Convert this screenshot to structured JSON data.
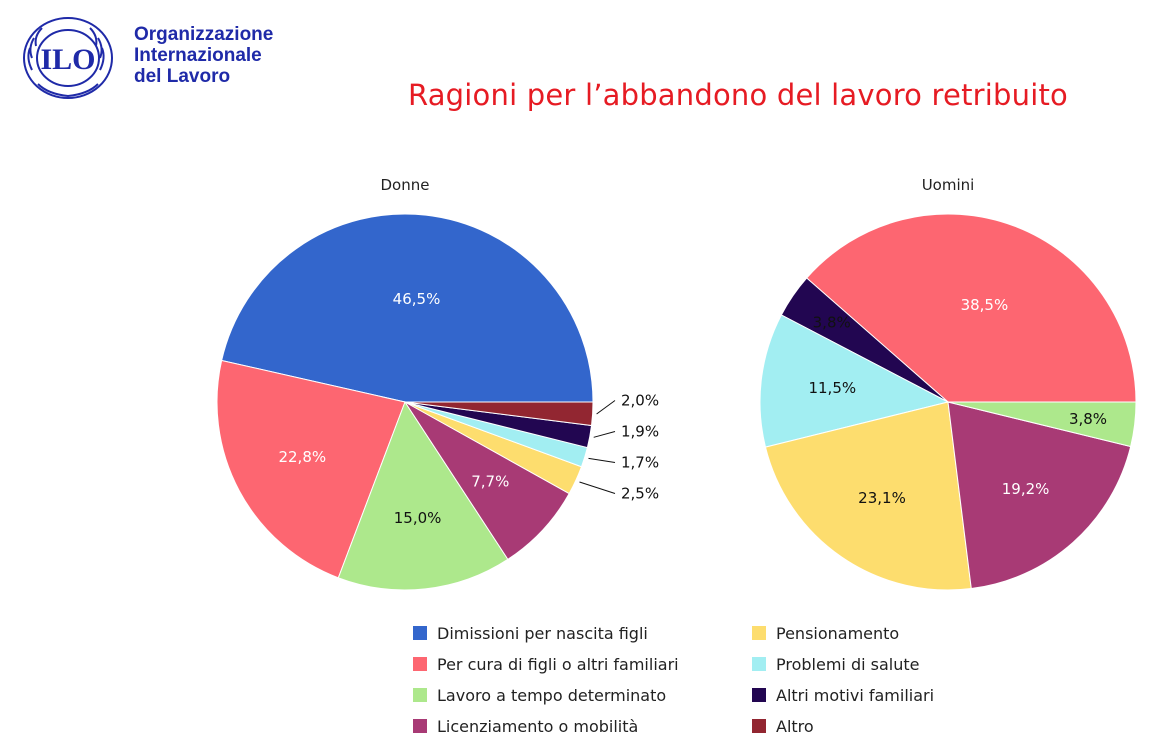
{
  "header": {
    "org_name_lines": [
      "Organizzazione",
      "Internazionale",
      "del Lavoro"
    ],
    "logo_text": "ILO",
    "title": "Ragioni per l’abbandono del lavoro retribuito"
  },
  "colors": {
    "brand_blue": "#1f2aa8",
    "title_red": "#e61b23"
  },
  "chart_data": {
    "type": "pie",
    "categories": [
      {
        "name": "Dimissioni per nascita figli",
        "color": "#3366cc"
      },
      {
        "name": "Per cura di figli o altri familiari",
        "color": "#fd6671"
      },
      {
        "name": "Lavoro a tempo determinato",
        "color": "#ade88c"
      },
      {
        "name": "Licenziamento o mobilità",
        "color": "#a83a75"
      },
      {
        "name": "Pensionamento",
        "color": "#fddd6e"
      },
      {
        "name": "Problemi di salute",
        "color": "#a2eef2"
      },
      {
        "name": "Altri motivi familiari",
        "color": "#220651"
      },
      {
        "name": "Altro",
        "color": "#922631"
      }
    ],
    "pies": [
      {
        "title": "Donne",
        "slices": [
          {
            "category": "Dimissioni per nascita figli",
            "value": 46.5,
            "label": "46,5%"
          },
          {
            "category": "Per cura di figli o altri familiari",
            "value": 22.8,
            "label": "22,8%"
          },
          {
            "category": "Lavoro a tempo determinato",
            "value": 15.0,
            "label": "15,0%"
          },
          {
            "category": "Licenziamento o mobilità",
            "value": 7.7,
            "label": "7,7%"
          },
          {
            "category": "Pensionamento",
            "value": 2.5,
            "label": "2,5%"
          },
          {
            "category": "Problemi di salute",
            "value": 1.7,
            "label": "1,7%"
          },
          {
            "category": "Altri motivi familiari",
            "value": 1.9,
            "label": "1,9%"
          },
          {
            "category": "Altro",
            "value": 2.0,
            "label": "2,0%"
          }
        ]
      },
      {
        "title": "Uomini",
        "slices": [
          {
            "category": "Per cura di figli o altri familiari",
            "value": 38.5,
            "label": "38,5%"
          },
          {
            "category": "Altri motivi familiari",
            "value": 3.8,
            "label": "3,8%"
          },
          {
            "category": "Problemi di salute",
            "value": 11.5,
            "label": "11,5%"
          },
          {
            "category": "Pensionamento",
            "value": 23.1,
            "label": "23,1%"
          },
          {
            "category": "Licenziamento o mobilità",
            "value": 19.2,
            "label": "19,2%"
          },
          {
            "category": "Lavoro a tempo determinato",
            "value": 3.8,
            "label": "3,8%"
          }
        ]
      }
    ],
    "legend_position": "bottom"
  }
}
